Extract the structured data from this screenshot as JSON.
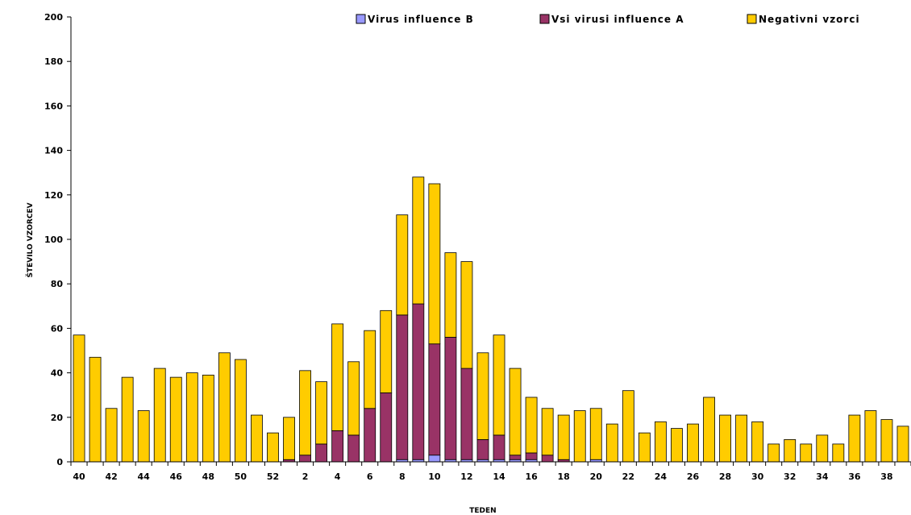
{
  "chart_data": {
    "type": "bar",
    "stacked": true,
    "xlabel": "TEDEN",
    "ylabel": "ŠTEVILO VZORCEV",
    "ylim": [
      0,
      200
    ],
    "yticks": [
      0,
      20,
      40,
      60,
      80,
      100,
      120,
      140,
      160,
      180,
      200
    ],
    "grid": false,
    "legend_position": "top-right",
    "colors": {
      "influenza_b": "#9999ff",
      "influenza_a": "#993366",
      "negative": "#ffcc00",
      "outline": "#000000"
    },
    "categories": [
      "40",
      "41",
      "42",
      "43",
      "44",
      "45",
      "46",
      "47",
      "48",
      "49",
      "50",
      "51",
      "52",
      "1",
      "2",
      "3",
      "4",
      "5",
      "6",
      "7",
      "8",
      "9",
      "10",
      "11",
      "12",
      "13",
      "14",
      "15",
      "16",
      "17",
      "18",
      "19",
      "20",
      "21",
      "22",
      "23",
      "24",
      "25",
      "26",
      "27",
      "28",
      "29",
      "30",
      "31",
      "32",
      "33",
      "34",
      "35",
      "36",
      "37",
      "38",
      "39"
    ],
    "x_tick_labels": [
      "40",
      "42",
      "44",
      "46",
      "48",
      "50",
      "52",
      "2",
      "4",
      "6",
      "8",
      "10",
      "12",
      "14",
      "16",
      "18",
      "20",
      "22",
      "24",
      "26",
      "28",
      "30",
      "32",
      "34",
      "36",
      "38"
    ],
    "series": [
      {
        "name": "Virus influence B",
        "values": [
          0,
          0,
          0,
          0,
          0,
          0,
          0,
          0,
          0,
          0,
          0,
          0,
          0,
          0,
          0,
          0,
          0,
          0,
          0,
          0,
          1,
          1,
          3,
          1,
          1,
          1,
          1,
          1,
          1,
          0,
          0,
          0,
          1,
          0,
          0,
          0,
          0,
          0,
          0,
          0,
          0,
          0,
          0,
          0,
          0,
          0,
          0,
          0,
          0,
          0,
          0,
          0
        ]
      },
      {
        "name": "Vsi virusi influence A",
        "values": [
          0,
          0,
          0,
          0,
          0,
          0,
          0,
          0,
          0,
          0,
          0,
          0,
          0,
          1,
          3,
          8,
          14,
          12,
          24,
          31,
          65,
          70,
          50,
          55,
          41,
          9,
          11,
          2,
          3,
          3,
          1,
          0,
          0,
          0,
          0,
          0,
          0,
          0,
          0,
          0,
          0,
          0,
          0,
          0,
          0,
          0,
          0,
          0,
          0,
          0,
          0,
          0
        ]
      },
      {
        "name": "Negativni vzorci",
        "values": [
          57,
          47,
          24,
          38,
          23,
          42,
          38,
          40,
          39,
          49,
          46,
          21,
          13,
          19,
          38,
          28,
          48,
          33,
          35,
          37,
          45,
          57,
          72,
          38,
          48,
          39,
          45,
          39,
          25,
          21,
          20,
          23,
          23,
          17,
          32,
          13,
          18,
          15,
          17,
          29,
          21,
          21,
          18,
          8,
          10,
          8,
          12,
          8,
          21,
          23,
          19,
          16
        ]
      }
    ]
  }
}
